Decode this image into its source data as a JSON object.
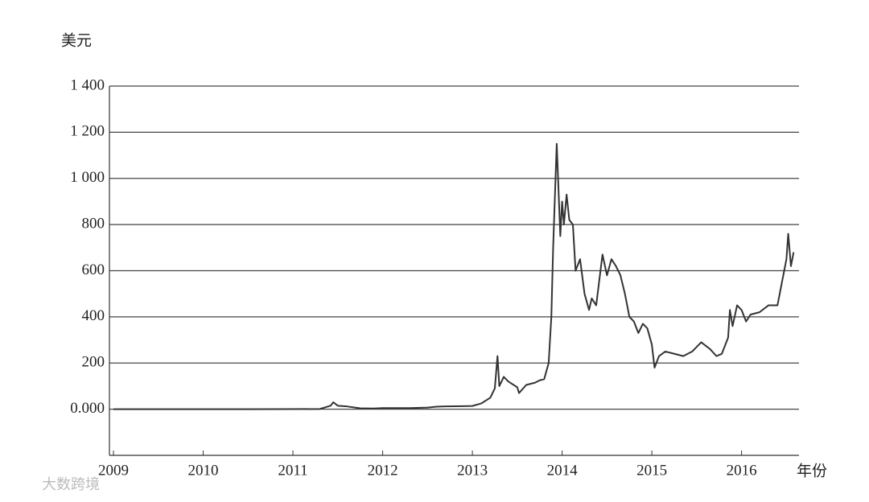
{
  "chart_data": {
    "type": "line",
    "y_label": "美元",
    "x_label": "年份",
    "watermark": "大数跨境",
    "x": [
      2009.0,
      2010.0,
      2010.5,
      2011.0,
      2011.3,
      2011.42,
      2011.45,
      2011.5,
      2011.6,
      2011.75,
      2011.9,
      2012.0,
      2012.3,
      2012.5,
      2012.6,
      2012.7,
      2012.9,
      2013.0,
      2013.1,
      2013.2,
      2013.25,
      2013.28,
      2013.3,
      2013.35,
      2013.4,
      2013.5,
      2013.52,
      2013.6,
      2013.7,
      2013.75,
      2013.8,
      2013.85,
      2013.88,
      2013.9,
      2013.94,
      2013.96,
      2013.98,
      2014.0,
      2014.02,
      2014.05,
      2014.08,
      2014.12,
      2014.15,
      2014.2,
      2014.25,
      2014.3,
      2014.33,
      2014.38,
      2014.45,
      2014.5,
      2014.55,
      2014.6,
      2014.65,
      2014.7,
      2014.75,
      2014.8,
      2014.85,
      2014.9,
      2014.95,
      2015.0,
      2015.03,
      2015.08,
      2015.15,
      2015.25,
      2015.35,
      2015.45,
      2015.55,
      2015.65,
      2015.72,
      2015.78,
      2015.85,
      2015.87,
      2015.9,
      2015.95,
      2016.0,
      2016.05,
      2016.1,
      2016.2,
      2016.3,
      2016.4,
      2016.45,
      2016.5,
      2016.52,
      2016.55,
      2016.58
    ],
    "series": [
      {
        "color": "#333333",
        "values": [
          0,
          0,
          0.1,
          0.3,
          1,
          15,
          30,
          15,
          12,
          4,
          3,
          5,
          5,
          7,
          11,
          12,
          13,
          14,
          25,
          50,
          90,
          230,
          100,
          140,
          120,
          95,
          70,
          105,
          115,
          125,
          130,
          200,
          400,
          700,
          1150,
          950,
          750,
          900,
          800,
          930,
          820,
          800,
          600,
          650,
          500,
          430,
          480,
          450,
          670,
          580,
          650,
          620,
          580,
          500,
          400,
          380,
          330,
          370,
          350,
          280,
          180,
          230,
          250,
          240,
          230,
          250,
          290,
          260,
          230,
          240,
          310,
          430,
          360,
          450,
          430,
          380,
          410,
          420,
          450,
          450,
          550,
          650,
          760,
          620,
          680
        ]
      }
    ],
    "xlim": [
      2008.955,
      2016.64
    ],
    "xticks": [
      2009,
      2010,
      2011,
      2012,
      2013,
      2014,
      2015,
      2016
    ],
    "ylim": [
      -200,
      1400
    ],
    "yticks": [
      {
        "value": 0,
        "label": "0.000"
      },
      200,
      400,
      600,
      800,
      {
        "value": 1000,
        "label": "1 000"
      },
      {
        "value": 1200,
        "label": "1 200"
      },
      {
        "value": 1400,
        "label": "1 400"
      }
    ],
    "grid": true
  }
}
